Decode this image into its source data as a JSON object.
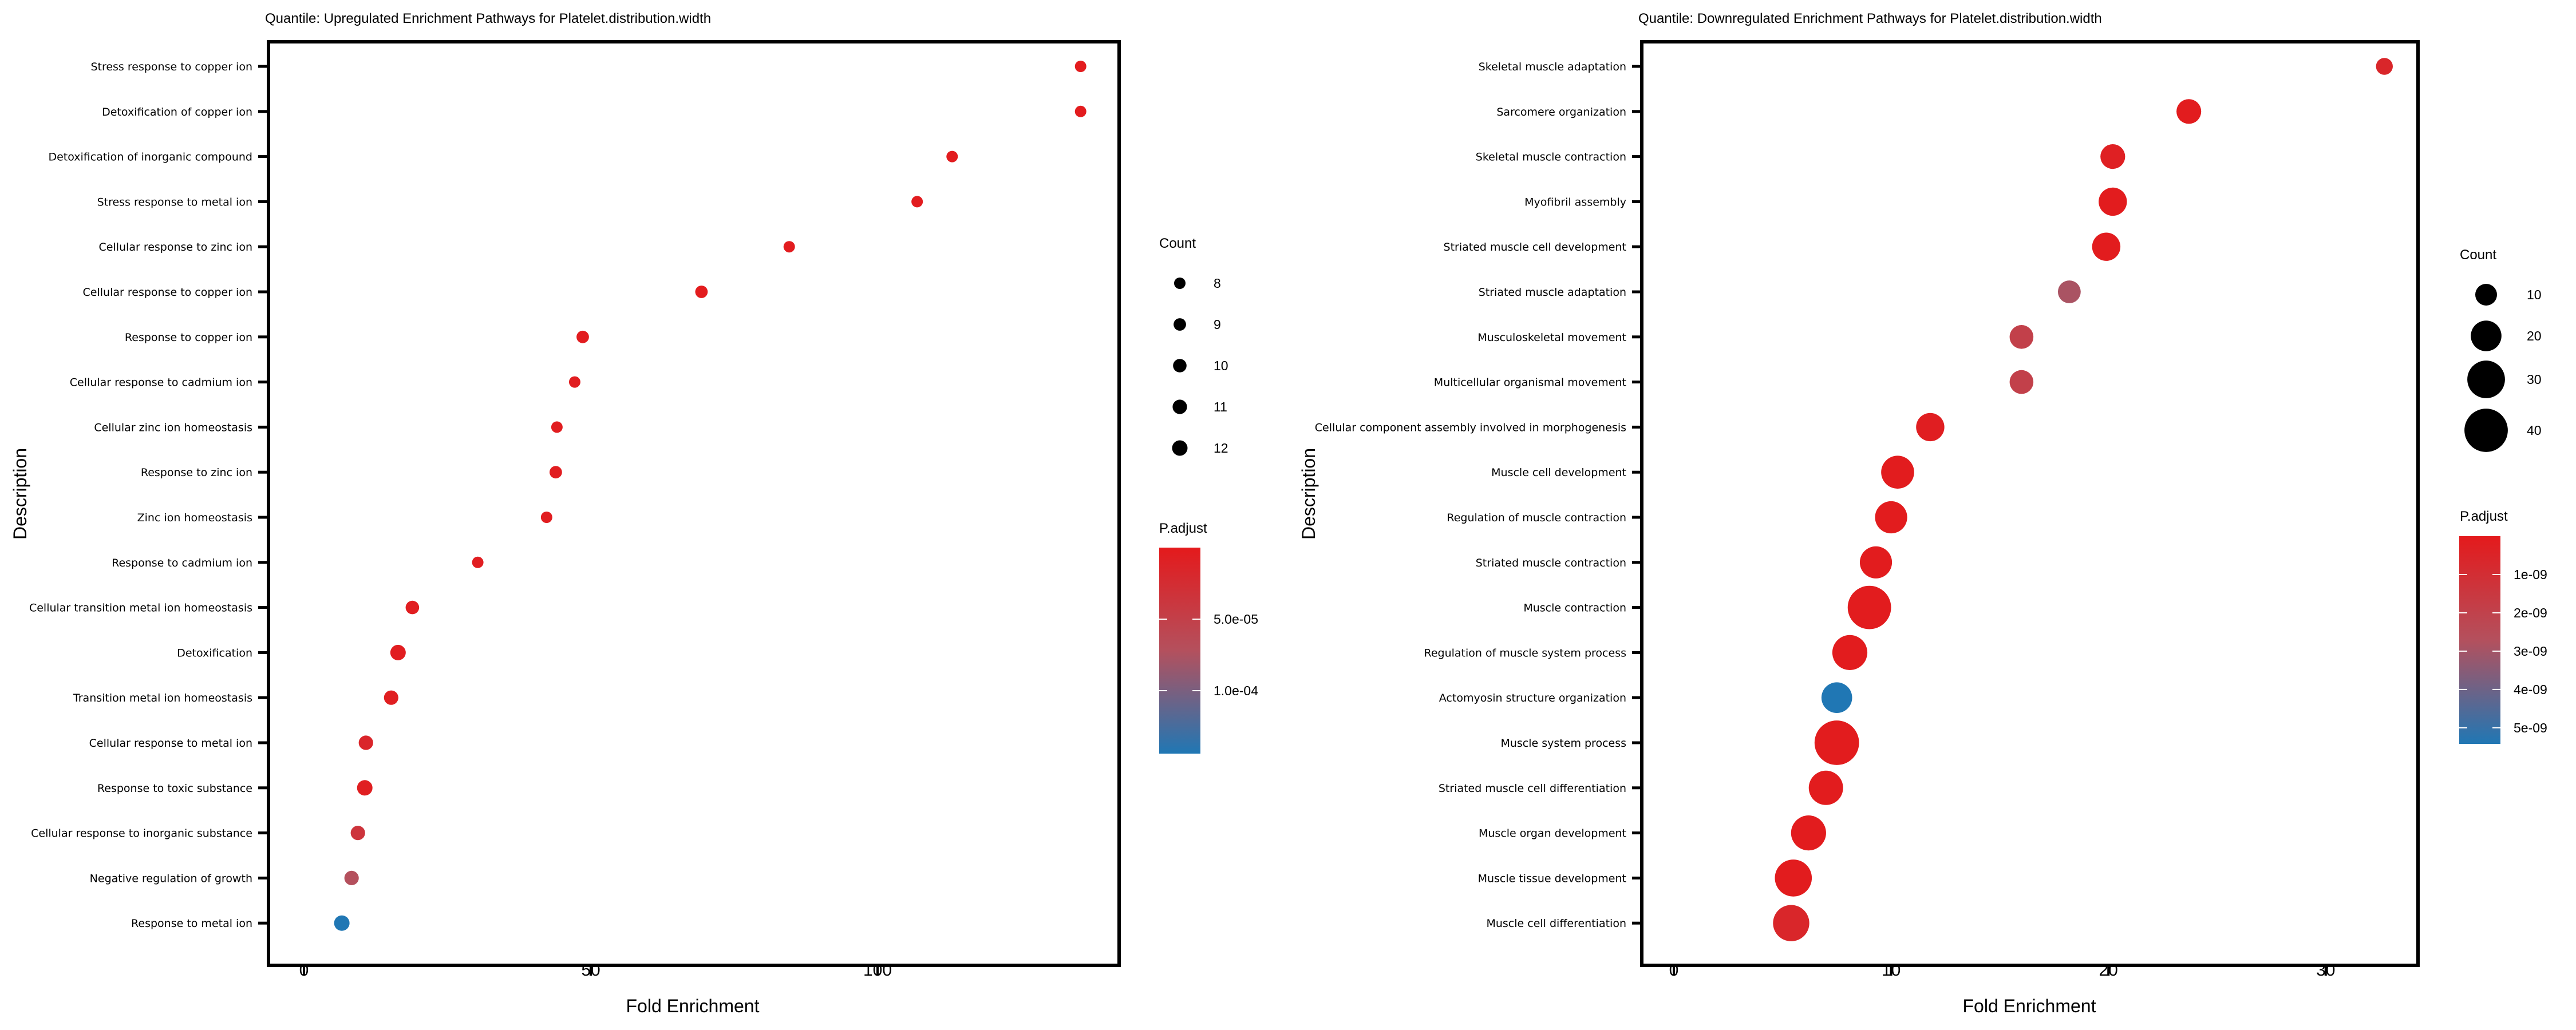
{
  "chart_data": [
    {
      "type": "scatter",
      "subtype": "dot-plot",
      "title": "Quantile: Upregulated Enrichment Pathways for Platelet.distribution.width",
      "xlabel": "Fold Enrichment",
      "ylabel": "Description",
      "xlim": [
        -6.5,
        141
      ],
      "xticks": [
        0,
        50,
        100
      ],
      "xtick_labels": [
        "0",
        "50",
        "100"
      ],
      "size_legend": {
        "title": "Count",
        "values": [
          8,
          9,
          10,
          11,
          12
        ],
        "labels": [
          "8",
          "9",
          "10",
          "11",
          "12"
        ]
      },
      "color_legend": {
        "title": "P.adjust",
        "range": [
          0.0,
          0.000144
        ],
        "ticks": [
          5e-05,
          0.0001
        ],
        "tick_labels": [
          "5.0e-05",
          "1.0e-04"
        ],
        "low_color": "#e41a1c",
        "high_color": "#2077b4"
      },
      "points": [
        {
          "description": "Stress response to copper ion",
          "fold_enrichment": 135.4,
          "count": 8,
          "p_adjust": 2e-06
        },
        {
          "description": "Detoxification of copper ion",
          "fold_enrichment": 135.4,
          "count": 8,
          "p_adjust": 2e-06
        },
        {
          "description": "Detoxification of inorganic compound",
          "fold_enrichment": 113.0,
          "count": 8,
          "p_adjust": 3e-06
        },
        {
          "description": "Stress response to metal ion",
          "fold_enrichment": 106.9,
          "count": 8,
          "p_adjust": 3e-06
        },
        {
          "description": "Cellular response to zinc ion",
          "fold_enrichment": 84.6,
          "count": 8,
          "p_adjust": 3e-06
        },
        {
          "description": "Cellular response to copper ion",
          "fold_enrichment": 69.3,
          "count": 9,
          "p_adjust": 2e-06
        },
        {
          "description": "Response to copper ion",
          "fold_enrichment": 48.6,
          "count": 9,
          "p_adjust": 3e-06
        },
        {
          "description": "Cellular response to cadmium ion",
          "fold_enrichment": 47.2,
          "count": 8,
          "p_adjust": 4e-06
        },
        {
          "description": "Cellular zinc ion homeostasis",
          "fold_enrichment": 44.1,
          "count": 8,
          "p_adjust": 4e-06
        },
        {
          "description": "Response to zinc ion",
          "fold_enrichment": 43.9,
          "count": 9,
          "p_adjust": 4e-06
        },
        {
          "description": "Zinc ion homeostasis",
          "fold_enrichment": 42.3,
          "count": 8,
          "p_adjust": 4e-06
        },
        {
          "description": "Response to cadmium ion",
          "fold_enrichment": 30.3,
          "count": 8,
          "p_adjust": 5e-06
        },
        {
          "description": "Cellular transition metal ion homeostasis",
          "fold_enrichment": 18.9,
          "count": 10,
          "p_adjust": 5e-06
        },
        {
          "description": "Detoxification",
          "fold_enrichment": 16.4,
          "count": 12,
          "p_adjust": 4e-06
        },
        {
          "description": "Transition metal ion homeostasis",
          "fold_enrichment": 15.2,
          "count": 11,
          "p_adjust": 6e-06
        },
        {
          "description": "Cellular response to metal ion",
          "fold_enrichment": 10.8,
          "count": 11,
          "p_adjust": 1.5e-05
        },
        {
          "description": "Response to toxic substance",
          "fold_enrichment": 10.6,
          "count": 12,
          "p_adjust": 6e-06
        },
        {
          "description": "Cellular response to inorganic substance",
          "fold_enrichment": 9.4,
          "count": 11,
          "p_adjust": 3.5e-05
        },
        {
          "description": "Negative regulation of growth",
          "fold_enrichment": 8.3,
          "count": 11,
          "p_adjust": 7.2e-05
        },
        {
          "description": "Response to metal ion",
          "fold_enrichment": 6.6,
          "count": 12,
          "p_adjust": 0.000144
        }
      ]
    },
    {
      "type": "scatter",
      "subtype": "dot-plot",
      "title": "Quantile: Downregulated Enrichment Pathways for Platelet.distribution.width",
      "xlabel": "Fold Enrichment",
      "ylabel": "Description",
      "xlim": [
        -1.55,
        34.3
      ],
      "xticks": [
        0,
        10,
        20,
        30
      ],
      "xtick_labels": [
        "0",
        "10",
        "20",
        "30"
      ],
      "size_legend": {
        "title": "Count",
        "values": [
          10,
          20,
          30,
          40
        ],
        "labels": [
          "10",
          "20",
          "30",
          "40"
        ]
      },
      "color_legend": {
        "title": "P.adjust",
        "range": [
          0.0,
          5.42e-09
        ],
        "ticks": [
          1e-09,
          2e-09,
          3e-09,
          4e-09,
          5e-09
        ],
        "tick_labels": [
          "1e-09",
          "2e-09",
          "3e-09",
          "4e-09",
          "5e-09"
        ],
        "low_color": "#e41a1c",
        "high_color": "#2077b4"
      },
      "points": [
        {
          "description": "Skeletal muscle adaptation",
          "fold_enrichment": 32.7,
          "count": 6,
          "p_adjust": 6e-10
        },
        {
          "description": "Sarcomere organization",
          "fold_enrichment": 23.7,
          "count": 13,
          "p_adjust": 1e-10
        },
        {
          "description": "Skeletal muscle contraction",
          "fold_enrichment": 20.2,
          "count": 13,
          "p_adjust": 3e-10
        },
        {
          "description": "Myofibril assembly",
          "fold_enrichment": 20.2,
          "count": 17,
          "p_adjust": 1e-10
        },
        {
          "description": "Striated muscle cell development",
          "fold_enrichment": 19.9,
          "count": 17,
          "p_adjust": 1e-10
        },
        {
          "description": "Striated muscle adaptation",
          "fold_enrichment": 18.2,
          "count": 11,
          "p_adjust": 2.9e-09
        },
        {
          "description": "Musculoskeletal movement",
          "fold_enrichment": 16.0,
          "count": 12,
          "p_adjust": 1.9e-09
        },
        {
          "description": "Multicellular organismal movement",
          "fold_enrichment": 16.0,
          "count": 12,
          "p_adjust": 1.9e-09
        },
        {
          "description": "Cellular component assembly involved in morphogenesis",
          "fold_enrichment": 11.8,
          "count": 17,
          "p_adjust": 2e-10
        },
        {
          "description": "Muscle cell development",
          "fold_enrichment": 10.3,
          "count": 23,
          "p_adjust": 1e-10
        },
        {
          "description": "Regulation of muscle contraction",
          "fold_enrichment": 10.0,
          "count": 22,
          "p_adjust": 1e-10
        },
        {
          "description": "Striated muscle contraction",
          "fold_enrichment": 9.3,
          "count": 22,
          "p_adjust": 1e-10
        },
        {
          "description": "Muscle contraction",
          "fold_enrichment": 9.0,
          "count": 40,
          "p_adjust": 1e-10
        },
        {
          "description": "Regulation of muscle system process",
          "fold_enrichment": 8.1,
          "count": 26,
          "p_adjust": 1e-10
        },
        {
          "description": "Actomyosin structure organization",
          "fold_enrichment": 7.5,
          "count": 20,
          "p_adjust": 5.42e-09
        },
        {
          "description": "Muscle system process",
          "fold_enrichment": 7.5,
          "count": 42,
          "p_adjust": 1e-10
        },
        {
          "description": "Striated muscle cell differentiation",
          "fold_enrichment": 7.0,
          "count": 25,
          "p_adjust": 1e-10
        },
        {
          "description": "Muscle organ development",
          "fold_enrichment": 6.2,
          "count": 26,
          "p_adjust": 1e-10
        },
        {
          "description": "Muscle tissue development",
          "fold_enrichment": 5.5,
          "count": 29,
          "p_adjust": 1e-10
        },
        {
          "description": "Muscle cell differentiation",
          "fold_enrichment": 5.4,
          "count": 28,
          "p_adjust": 6e-10
        }
      ]
    }
  ]
}
